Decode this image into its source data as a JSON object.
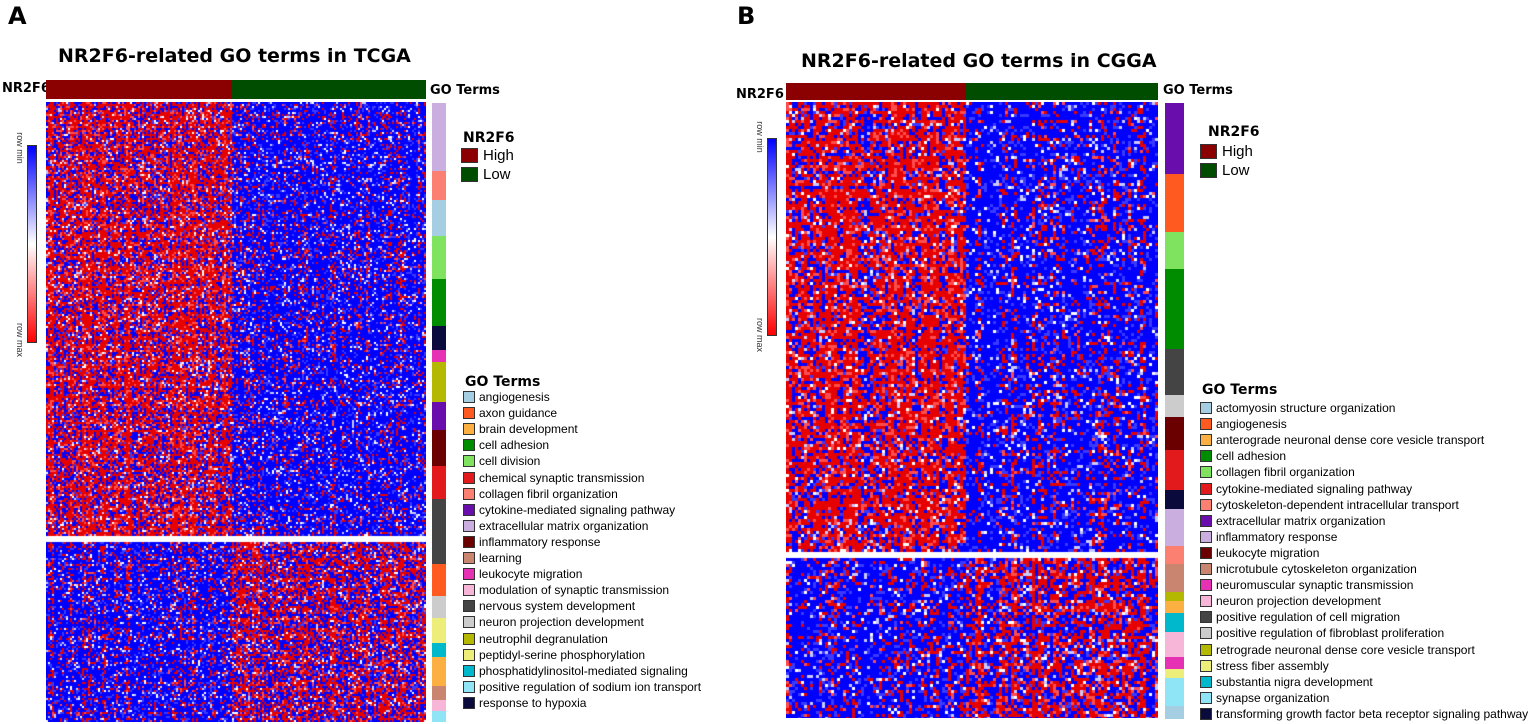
{
  "colors": {
    "high": "#8b0000",
    "low": "#004d00",
    "heat_low": "#0000ff",
    "heat_mid": "#ffffff",
    "heat_high": "#ff0000"
  },
  "panels": {
    "A": {
      "letter": "A",
      "title": "NR2F6-related GO terms in TCGA",
      "nr2f6_label": "NR2F6",
      "go_header": "GO Terms",
      "scale_min": "row min",
      "scale_max": "row max",
      "group_legend": {
        "title": "NR2F6",
        "items": [
          {
            "label": "High",
            "color": "#8b0000"
          },
          {
            "label": "Low",
            "color": "#004d00"
          }
        ]
      },
      "go_legend": {
        "title": "GO Terms",
        "items": [
          {
            "label": "angiogenesis",
            "color": "#a6cee3"
          },
          {
            "label": "axon guidance",
            "color": "#ff5a1f"
          },
          {
            "label": "brain development",
            "color": "#fdb042"
          },
          {
            "label": "cell adhesion",
            "color": "#008c00"
          },
          {
            "label": "cell division",
            "color": "#7fe35f"
          },
          {
            "label": "chemical synaptic transmission",
            "color": "#e31a1c"
          },
          {
            "label": "collagen fibril organization",
            "color": "#fb8072"
          },
          {
            "label": "cytokine-mediated signaling pathway",
            "color": "#6a0dad"
          },
          {
            "label": "extracellular matrix organization",
            "color": "#cbaee0"
          },
          {
            "label": "inflammatory response",
            "color": "#6b0000"
          },
          {
            "label": "learning",
            "color": "#c98570"
          },
          {
            "label": "leukocyte migration",
            "color": "#e631b4"
          },
          {
            "label": "modulation of synaptic transmission",
            "color": "#f7b6d8"
          },
          {
            "label": "nervous system development",
            "color": "#444444"
          },
          {
            "label": "neuron projection development",
            "color": "#cccccc"
          },
          {
            "label": "neutrophil degranulation",
            "color": "#b5b800"
          },
          {
            "label": "peptidyl-serine phosphorylation",
            "color": "#eded7a"
          },
          {
            "label": "phosphatidylinositol-mediated signaling",
            "color": "#00b8cc"
          },
          {
            "label": "positive regulation of sodium ion transport",
            "color": "#8fe5f5"
          },
          {
            "label": "response to hypoxia",
            "color": "#0a0a3c"
          }
        ]
      }
    },
    "B": {
      "letter": "B",
      "title": "NR2F6-related GO terms in CGGA",
      "nr2f6_label": "NR2F6",
      "go_header": "GO Terms",
      "scale_min": "row min",
      "scale_max": "row max",
      "group_legend": {
        "title": "NR2F6",
        "items": [
          {
            "label": "High",
            "color": "#8b0000"
          },
          {
            "label": "Low",
            "color": "#004d00"
          }
        ]
      },
      "go_legend": {
        "title": "GO Terms",
        "items": [
          {
            "label": "actomyosin structure organization",
            "color": "#a6cee3"
          },
          {
            "label": "angiogenesis",
            "color": "#ff5a1f"
          },
          {
            "label": "anterograde neuronal dense core vesicle transport",
            "color": "#fdb042"
          },
          {
            "label": "cell adhesion",
            "color": "#008c00"
          },
          {
            "label": "collagen fibril organization",
            "color": "#7fe35f"
          },
          {
            "label": "cytokine-mediated signaling pathway",
            "color": "#e31a1c"
          },
          {
            "label": "cytoskeleton-dependent intracellular transport",
            "color": "#fb8072"
          },
          {
            "label": "extracellular matrix organization",
            "color": "#6a0dad"
          },
          {
            "label": "inflammatory response",
            "color": "#cbaee0"
          },
          {
            "label": "leukocyte migration",
            "color": "#6b0000"
          },
          {
            "label": "microtubule cytoskeleton organization",
            "color": "#c98570"
          },
          {
            "label": "neuromuscular synaptic transmission",
            "color": "#e631b4"
          },
          {
            "label": "neuron projection development",
            "color": "#f7b6d8"
          },
          {
            "label": "positive regulation of cell migration",
            "color": "#444444"
          },
          {
            "label": "positive regulation of fibroblast proliferation",
            "color": "#cccccc"
          },
          {
            "label": "retrograde neuronal dense core vesicle transport",
            "color": "#b5b800"
          },
          {
            "label": "stress fiber assembly",
            "color": "#eded7a"
          },
          {
            "label": "substantia nigra development",
            "color": "#00b8cc"
          },
          {
            "label": "synapse organization",
            "color": "#8fe5f5"
          },
          {
            "label": "transforming growth factor beta receptor signaling pathway",
            "color": "#0a0a3c"
          }
        ]
      }
    }
  },
  "chart_data": [
    {
      "type": "heatmap",
      "title": "NR2F6-related GO terms in TCGA",
      "column_groups": [
        {
          "name": "High",
          "fraction": 0.49
        },
        {
          "name": "Low",
          "fraction": 0.51
        }
      ],
      "row_clusters": [
        {
          "name": "upper",
          "fraction": 0.705,
          "high_group_mean": "row max",
          "low_group_mean": "row min"
        },
        {
          "name": "lower",
          "fraction": 0.295,
          "high_group_mean": "row min",
          "low_group_mean": "row max"
        }
      ],
      "row_annotation_sequence": [
        {
          "term": "extracellular matrix organization",
          "color": "#cbaee0",
          "fraction": 0.095
        },
        {
          "term": "collagen fibril organization",
          "color": "#fb8072",
          "fraction": 0.04
        },
        {
          "term": "angiogenesis",
          "color": "#a6cee3",
          "fraction": 0.05
        },
        {
          "term": "cell division",
          "color": "#7fe35f",
          "fraction": 0.06
        },
        {
          "term": "cell adhesion",
          "color": "#008c00",
          "fraction": 0.065
        },
        {
          "term": "response to hypoxia",
          "color": "#0a0a3c",
          "fraction": 0.033
        },
        {
          "term": "leukocyte migration",
          "color": "#e631b4",
          "fraction": 0.017
        },
        {
          "term": "neutrophil degranulation",
          "color": "#b5b800",
          "fraction": 0.055
        },
        {
          "term": "cytokine-mediated signaling pathway",
          "color": "#6a0dad",
          "fraction": 0.04
        },
        {
          "term": "inflammatory response",
          "color": "#6b0000",
          "fraction": 0.05
        },
        {
          "term": "chemical synaptic transmission",
          "color": "#e31a1c",
          "fraction": 0.045
        },
        {
          "term": "nervous system development",
          "color": "#444444",
          "fraction": 0.09
        },
        {
          "term": "axon guidance",
          "color": "#ff5a1f",
          "fraction": 0.045
        },
        {
          "term": "neuron projection development",
          "color": "#cccccc",
          "fraction": 0.03
        },
        {
          "term": "peptidyl-serine phosphorylation",
          "color": "#eded7a",
          "fraction": 0.035
        },
        {
          "term": "phosphatidylinositol-mediated signaling",
          "color": "#00b8cc",
          "fraction": 0.02
        },
        {
          "term": "brain development",
          "color": "#fdb042",
          "fraction": 0.04
        },
        {
          "term": "learning",
          "color": "#c98570",
          "fraction": 0.02
        },
        {
          "term": "modulation of synaptic transmission",
          "color": "#f7b6d8",
          "fraction": 0.015
        },
        {
          "term": "positive regulation of sodium ion transport",
          "color": "#8fe5f5",
          "fraction": 0.015
        }
      ],
      "color_scale": {
        "min_label": "row min",
        "max_label": "row max",
        "colors": [
          "#ff0000",
          "#ffffff",
          "#0000ff"
        ]
      }
    },
    {
      "type": "heatmap",
      "title": "NR2F6-related GO terms in CGGA",
      "column_groups": [
        {
          "name": "High",
          "fraction": 0.485
        },
        {
          "name": "Low",
          "fraction": 0.515
        }
      ],
      "row_clusters": [
        {
          "name": "upper",
          "fraction": 0.735,
          "high_group_mean": "row max",
          "low_group_mean": "row min"
        },
        {
          "name": "lower",
          "fraction": 0.265,
          "high_group_mean": "row min",
          "low_group_mean": "row max"
        }
      ],
      "row_annotation_sequence": [
        {
          "term": "extracellular matrix organization",
          "color": "#6a0dad",
          "fraction": 0.115
        },
        {
          "term": "angiogenesis",
          "color": "#ff5a1f",
          "fraction": 0.095
        },
        {
          "term": "collagen fibril organization",
          "color": "#7fe35f",
          "fraction": 0.06
        },
        {
          "term": "cell adhesion",
          "color": "#008c00",
          "fraction": 0.13
        },
        {
          "term": "positive regulation of cell migration",
          "color": "#444444",
          "fraction": 0.075
        },
        {
          "term": "positive regulation of fibroblast proliferation",
          "color": "#cccccc",
          "fraction": 0.035
        },
        {
          "term": "leukocyte migration",
          "color": "#6b0000",
          "fraction": 0.055
        },
        {
          "term": "cytokine-mediated signaling pathway",
          "color": "#e31a1c",
          "fraction": 0.065
        },
        {
          "term": "transforming growth factor beta receptor signaling pathway",
          "color": "#0a0a3c",
          "fraction": 0.03
        },
        {
          "term": "inflammatory response",
          "color": "#cbaee0",
          "fraction": 0.06
        },
        {
          "term": "cytoskeleton-dependent intracellular transport",
          "color": "#fb8072",
          "fraction": 0.03
        },
        {
          "term": "microtubule cytoskeleton organization",
          "color": "#c98570",
          "fraction": 0.045
        },
        {
          "term": "retrograde neuronal dense core vesicle transport",
          "color": "#b5b800",
          "fraction": 0.015
        },
        {
          "term": "anterograde neuronal dense core vesicle transport",
          "color": "#fdb042",
          "fraction": 0.02
        },
        {
          "term": "substantia nigra development",
          "color": "#00b8cc",
          "fraction": 0.03
        },
        {
          "term": "neuron projection development",
          "color": "#f7b6d8",
          "fraction": 0.04
        },
        {
          "term": "neuromuscular synaptic transmission",
          "color": "#e631b4",
          "fraction": 0.02
        },
        {
          "term": "stress fiber assembly",
          "color": "#eded7a",
          "fraction": 0.015
        },
        {
          "term": "synapse organization",
          "color": "#8fe5f5",
          "fraction": 0.045
        },
        {
          "term": "actomyosin structure organization",
          "color": "#a6cee3",
          "fraction": 0.02
        }
      ],
      "color_scale": {
        "min_label": "row min",
        "max_label": "row max",
        "colors": [
          "#ff0000",
          "#ffffff",
          "#0000ff"
        ]
      }
    }
  ]
}
